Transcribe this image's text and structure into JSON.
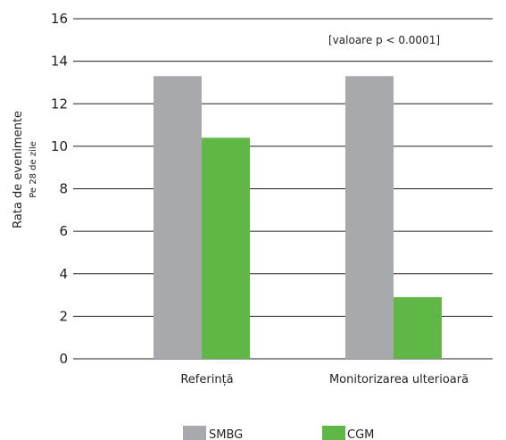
{
  "chart_data": {
    "type": "bar",
    "categories": [
      "Referință",
      "Monitorizarea ulterioară"
    ],
    "series": [
      {
        "name": "SMBG",
        "color": "#a7a9ac",
        "values": [
          13.3,
          13.3
        ]
      },
      {
        "name": "CGM",
        "color": "#5fb846",
        "values": [
          10.4,
          2.9
        ]
      }
    ],
    "ylabel": "Rata de evenimente",
    "ylabel_sub": "Pe 28 de zile",
    "ylim": [
      0,
      16
    ],
    "yticks": [
      0,
      2,
      4,
      6,
      8,
      10,
      12,
      14,
      16
    ],
    "annotation": "[valoare p < 0.0001]",
    "grid": true,
    "legend_position": "bottom"
  }
}
